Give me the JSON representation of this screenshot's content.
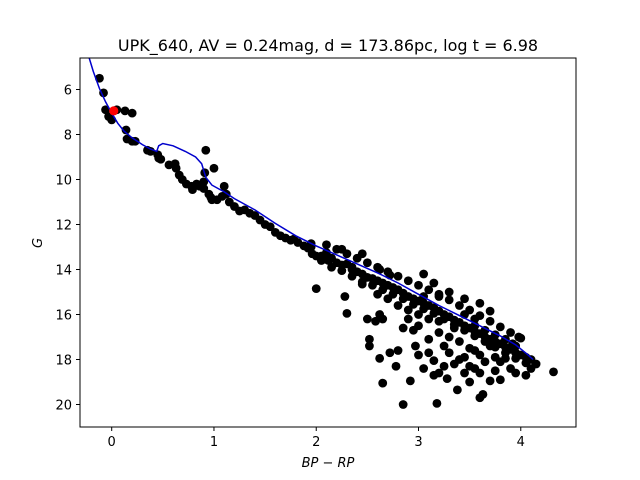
{
  "chart_data": {
    "type": "scatter",
    "title": "UPK_640, AV = 0.24mag, d = 173.86pc, log t = 6.98",
    "xlabel": "BP − RP",
    "ylabel": "G",
    "xlim": [
      -0.31,
      4.54
    ],
    "ylim": [
      21.0,
      4.6
    ],
    "y_inverted": true,
    "grid": false,
    "xticks": [
      0,
      1,
      2,
      3,
      4
    ],
    "yticks": [
      6,
      8,
      10,
      12,
      14,
      16,
      18,
      20
    ],
    "colors": {
      "stars": "#000000",
      "highlight": "#ff0000",
      "isochrone": "#0000cc"
    },
    "series": [
      {
        "kind": "points",
        "color": "#000000",
        "points": [
          [
            -0.12,
            5.5
          ],
          [
            -0.08,
            6.15
          ],
          [
            -0.06,
            6.9
          ],
          [
            -0.03,
            7.2
          ],
          [
            0.0,
            7.35
          ],
          [
            0.13,
            6.95
          ],
          [
            0.2,
            7.05
          ],
          [
            0.05,
            6.9
          ],
          [
            0.14,
            7.8
          ],
          [
            0.15,
            8.2
          ],
          [
            0.2,
            8.3
          ],
          [
            0.23,
            8.3
          ],
          [
            0.35,
            8.7
          ],
          [
            0.38,
            8.75
          ],
          [
            0.45,
            8.9
          ],
          [
            0.46,
            9.05
          ],
          [
            0.48,
            9.1
          ],
          [
            0.56,
            9.35
          ],
          [
            0.62,
            9.3
          ],
          [
            0.63,
            9.5
          ],
          [
            0.66,
            9.8
          ],
          [
            0.69,
            10.0
          ],
          [
            0.73,
            10.2
          ],
          [
            0.78,
            10.3
          ],
          [
            0.79,
            10.45
          ],
          [
            0.83,
            10.2
          ],
          [
            0.86,
            10.3
          ],
          [
            0.9,
            10.1
          ],
          [
            0.9,
            10.4
          ],
          [
            0.91,
            9.7
          ],
          [
            0.95,
            10.65
          ],
          [
            0.97,
            10.8
          ],
          [
            1.0,
            9.5
          ],
          [
            1.03,
            10.9
          ],
          [
            1.08,
            10.75
          ],
          [
            1.1,
            10.3
          ],
          [
            1.12,
            10.65
          ],
          [
            1.15,
            11.0
          ],
          [
            0.92,
            8.7
          ],
          [
            0.98,
            10.9
          ],
          [
            1.2,
            11.2
          ],
          [
            1.25,
            11.4
          ],
          [
            1.3,
            11.35
          ],
          [
            1.35,
            11.5
          ],
          [
            1.4,
            11.6
          ],
          [
            1.45,
            11.8
          ],
          [
            1.5,
            12.0
          ],
          [
            1.55,
            12.1
          ],
          [
            1.6,
            12.35
          ],
          [
            1.65,
            12.5
          ],
          [
            1.7,
            12.6
          ],
          [
            1.75,
            12.7
          ],
          [
            1.78,
            12.65
          ],
          [
            1.82,
            12.8
          ],
          [
            1.88,
            12.95
          ],
          [
            1.92,
            13.05
          ],
          [
            1.96,
            13.3
          ],
          [
            2.0,
            13.4
          ],
          [
            2.05,
            13.4
          ],
          [
            2.1,
            13.55
          ],
          [
            2.1,
            13.25
          ],
          [
            2.12,
            13.6
          ],
          [
            2.15,
            13.5
          ],
          [
            2.2,
            13.7
          ],
          [
            2.25,
            13.8
          ],
          [
            2.3,
            13.75
          ],
          [
            2.35,
            13.9
          ],
          [
            2.4,
            14.1
          ],
          [
            2.45,
            14.2
          ],
          [
            2.5,
            14.35
          ],
          [
            2.55,
            14.4
          ],
          [
            2.6,
            14.5
          ],
          [
            2.65,
            14.6
          ],
          [
            2.7,
            14.7
          ],
          [
            2.75,
            14.8
          ],
          [
            2.8,
            14.9
          ],
          [
            2.85,
            15.05
          ],
          [
            2.9,
            15.2
          ],
          [
            2.95,
            15.3
          ],
          [
            3.0,
            15.4
          ],
          [
            3.05,
            15.5
          ],
          [
            3.1,
            15.6
          ],
          [
            3.15,
            15.7
          ],
          [
            3.2,
            15.85
          ],
          [
            3.25,
            16.0
          ],
          [
            3.3,
            16.1
          ],
          [
            3.35,
            16.25
          ],
          [
            3.4,
            16.35
          ],
          [
            3.45,
            16.5
          ],
          [
            3.5,
            16.6
          ],
          [
            3.55,
            16.75
          ],
          [
            3.6,
            16.85
          ],
          [
            3.65,
            17.0
          ],
          [
            3.7,
            17.1
          ],
          [
            3.75,
            17.2
          ],
          [
            3.8,
            17.3
          ],
          [
            3.85,
            17.45
          ],
          [
            3.9,
            17.55
          ],
          [
            3.95,
            17.7
          ],
          [
            4.0,
            17.8
          ],
          [
            4.05,
            17.9
          ],
          [
            4.1,
            18.0
          ],
          [
            4.15,
            18.2
          ],
          [
            4.32,
            18.55
          ],
          [
            1.95,
            13.0
          ],
          [
            2.05,
            13.6
          ],
          [
            2.15,
            13.9
          ],
          [
            2.25,
            14.05
          ],
          [
            2.35,
            14.3
          ],
          [
            2.45,
            14.55
          ],
          [
            2.55,
            14.7
          ],
          [
            2.65,
            14.9
          ],
          [
            2.75,
            15.1
          ],
          [
            2.85,
            15.3
          ],
          [
            2.95,
            15.55
          ],
          [
            3.05,
            15.75
          ],
          [
            3.15,
            15.95
          ],
          [
            3.25,
            16.2
          ],
          [
            3.35,
            16.45
          ],
          [
            3.45,
            16.7
          ],
          [
            3.55,
            16.95
          ],
          [
            3.65,
            17.2
          ],
          [
            3.75,
            17.45
          ],
          [
            3.85,
            17.7
          ],
          [
            3.95,
            17.95
          ],
          [
            4.05,
            18.15
          ],
          [
            2.1,
            12.9
          ],
          [
            2.2,
            13.1
          ],
          [
            2.3,
            13.3
          ],
          [
            2.4,
            13.5
          ],
          [
            2.5,
            13.7
          ],
          [
            2.6,
            13.9
          ],
          [
            2.7,
            14.1
          ],
          [
            2.8,
            14.3
          ],
          [
            2.9,
            14.5
          ],
          [
            3.0,
            14.7
          ],
          [
            3.1,
            14.9
          ],
          [
            3.2,
            15.1
          ],
          [
            3.3,
            15.35
          ],
          [
            3.4,
            15.6
          ],
          [
            3.5,
            15.8
          ],
          [
            3.6,
            16.05
          ],
          [
            3.7,
            16.3
          ],
          [
            3.8,
            16.55
          ],
          [
            3.9,
            16.8
          ],
          [
            4.0,
            17.05
          ],
          [
            1.95,
            12.85
          ],
          [
            2.25,
            13.1
          ],
          [
            2.45,
            13.3
          ],
          [
            2.35,
            14.0
          ],
          [
            2.62,
            14.0
          ],
          [
            2.72,
            14.25
          ],
          [
            3.05,
            14.2
          ],
          [
            3.2,
            15.2
          ],
          [
            3.15,
            14.6
          ],
          [
            3.3,
            15.0
          ],
          [
            3.45,
            15.3
          ],
          [
            3.7,
            15.85
          ],
          [
            3.6,
            15.5
          ],
          [
            3.55,
            16.2
          ],
          [
            2.0,
            14.85
          ],
          [
            2.28,
            15.2
          ],
          [
            2.3,
            15.95
          ],
          [
            2.45,
            14.65
          ],
          [
            2.62,
            16.0
          ],
          [
            2.65,
            16.2
          ],
          [
            2.5,
            16.2
          ],
          [
            2.52,
            17.1
          ],
          [
            2.52,
            17.4
          ],
          [
            2.58,
            16.3
          ],
          [
            2.62,
            17.95
          ],
          [
            2.65,
            19.05
          ],
          [
            2.72,
            17.7
          ],
          [
            2.8,
            17.6
          ],
          [
            2.78,
            18.3
          ],
          [
            2.85,
            20.0
          ],
          [
            2.92,
            18.95
          ],
          [
            2.97,
            17.4
          ],
          [
            3.0,
            17.8
          ],
          [
            3.05,
            18.4
          ],
          [
            3.1,
            17.7
          ],
          [
            3.15,
            18.05
          ],
          [
            3.18,
            19.95
          ],
          [
            3.2,
            18.6
          ],
          [
            3.28,
            18.85
          ],
          [
            3.35,
            18.2
          ],
          [
            3.38,
            19.35
          ],
          [
            3.45,
            18.6
          ],
          [
            3.5,
            19.0
          ],
          [
            3.55,
            18.4
          ],
          [
            3.6,
            19.7
          ],
          [
            3.63,
            19.55
          ],
          [
            3.7,
            18.95
          ],
          [
            3.75,
            18.5
          ],
          [
            3.8,
            18.9
          ],
          [
            3.9,
            18.4
          ],
          [
            3.95,
            18.6
          ],
          [
            4.05,
            18.7
          ],
          [
            3.85,
            17.95
          ],
          [
            3.4,
            17.2
          ],
          [
            3.5,
            17.5
          ],
          [
            3.6,
            17.8
          ],
          [
            3.65,
            18.1
          ],
          [
            3.7,
            17.4
          ],
          [
            3.3,
            17.0
          ],
          [
            3.25,
            17.4
          ],
          [
            3.2,
            16.8
          ],
          [
            3.1,
            17.1
          ],
          [
            3.0,
            16.5
          ],
          [
            2.95,
            16.7
          ],
          [
            2.9,
            16.2
          ],
          [
            2.85,
            16.6
          ],
          [
            3.35,
            16.6
          ],
          [
            3.45,
            17.9
          ],
          [
            3.55,
            17.6
          ],
          [
            3.75,
            17.9
          ],
          [
            3.8,
            18.1
          ],
          [
            3.92,
            17.3
          ],
          [
            3.98,
            17.0
          ],
          [
            4.1,
            18.4
          ],
          [
            3.3,
            17.7
          ],
          [
            3.4,
            18.0
          ],
          [
            3.5,
            18.3
          ],
          [
            3.6,
            18.6
          ],
          [
            3.25,
            18.3
          ],
          [
            3.15,
            18.7
          ],
          [
            3.45,
            16.0
          ],
          [
            3.55,
            16.5
          ],
          [
            3.65,
            16.7
          ],
          [
            3.75,
            16.9
          ],
          [
            3.85,
            17.1
          ],
          [
            3.95,
            17.4
          ],
          [
            3.2,
            16.3
          ],
          [
            3.1,
            16.2
          ],
          [
            3.0,
            16.0
          ],
          [
            2.9,
            15.8
          ],
          [
            2.8,
            15.6
          ],
          [
            2.7,
            15.3
          ],
          [
            2.6,
            15.1
          ],
          [
            3.05,
            15.2
          ]
        ]
      },
      {
        "kind": "points",
        "color": "#ff0000",
        "points": [
          [
            0.02,
            6.95
          ]
        ]
      },
      {
        "kind": "line",
        "color": "#0000cc",
        "points": [
          [
            -0.22,
            4.6
          ],
          [
            -0.18,
            5.2
          ],
          [
            -0.12,
            5.95
          ],
          [
            -0.06,
            6.55
          ],
          [
            0.0,
            7.05
          ],
          [
            0.06,
            7.5
          ],
          [
            0.12,
            7.85
          ],
          [
            0.2,
            8.15
          ],
          [
            0.3,
            8.45
          ],
          [
            0.38,
            8.65
          ],
          [
            0.44,
            8.75
          ],
          [
            0.46,
            8.5
          ],
          [
            0.5,
            8.4
          ],
          [
            0.6,
            8.5
          ],
          [
            0.72,
            8.75
          ],
          [
            0.82,
            9.0
          ],
          [
            0.88,
            9.3
          ],
          [
            0.9,
            9.6
          ],
          [
            0.92,
            9.9
          ],
          [
            0.98,
            10.25
          ],
          [
            1.1,
            10.55
          ],
          [
            1.2,
            10.85
          ],
          [
            1.4,
            11.35
          ],
          [
            1.6,
            11.95
          ],
          [
            1.8,
            12.5
          ],
          [
            2.0,
            12.95
          ],
          [
            2.2,
            13.35
          ],
          [
            2.4,
            13.75
          ],
          [
            2.6,
            14.15
          ],
          [
            2.8,
            14.6
          ],
          [
            3.0,
            15.1
          ],
          [
            3.2,
            15.6
          ],
          [
            3.4,
            16.05
          ],
          [
            3.6,
            16.5
          ],
          [
            3.8,
            16.95
          ],
          [
            3.95,
            17.35
          ],
          [
            4.06,
            17.75
          ],
          [
            4.12,
            18.0
          ]
        ]
      }
    ]
  }
}
